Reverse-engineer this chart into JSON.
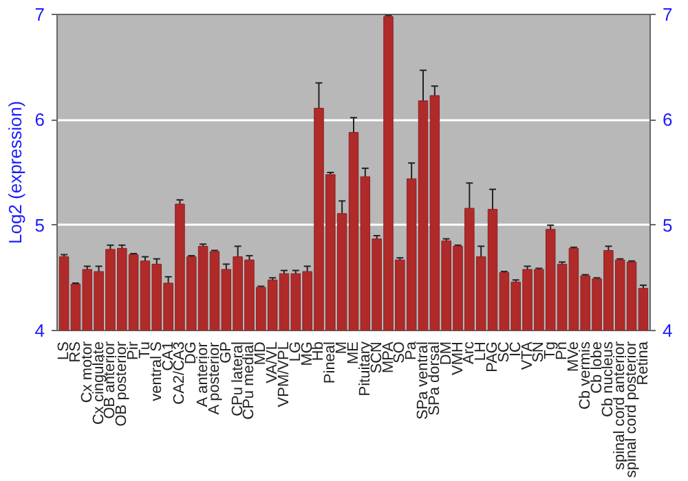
{
  "chart_data": {
    "type": "bar",
    "ylabel": "Log2 (expression)",
    "categories": [
      "LS",
      "RS",
      "Cx motor",
      "Cx cingulate",
      "OB anterior",
      "OB posterior",
      "Pir",
      "Tu",
      "ventral S",
      "CA1",
      "CA2/CA3",
      "DG",
      "A anterior",
      "A posterior",
      "GP",
      "CPu lateral",
      "CPu medial",
      "MD",
      "VA/VL",
      "VPM/VPL",
      "LG",
      "MG",
      "Hb",
      "Pineal",
      "M",
      "ME",
      "Pituitary",
      "SCN",
      "MPA",
      "SO",
      "Pa",
      "SPa ventral",
      "SPa dorsal",
      "DM",
      "VMH",
      "Arc",
      "LH",
      "PAG",
      "SC",
      "IC",
      "VTA",
      "SN",
      "Tg",
      "Pn",
      "MVe",
      "Cb vermis",
      "Cb lobe",
      "Cb nucleus",
      "spinal cord anterior",
      "spinal cord posterior",
      "Retina"
    ],
    "values": [
      4.7,
      4.44,
      4.58,
      4.56,
      4.77,
      4.78,
      4.72,
      4.66,
      4.63,
      4.45,
      5.2,
      4.7,
      4.8,
      4.75,
      4.58,
      4.7,
      4.67,
      4.41,
      4.48,
      4.54,
      4.54,
      4.56,
      6.11,
      5.48,
      5.11,
      5.88,
      5.46,
      4.87,
      6.98,
      4.67,
      5.44,
      6.18,
      6.23,
      4.85,
      4.8,
      5.16,
      4.7,
      5.15,
      4.55,
      4.46,
      4.58,
      4.58,
      4.96,
      4.63,
      4.78,
      4.52,
      4.49,
      4.76,
      4.67,
      4.65,
      4.4
    ],
    "errors": [
      0.02,
      0.01,
      0.03,
      0.05,
      0.04,
      0.03,
      0.01,
      0.04,
      0.05,
      0.06,
      0.04,
      0.01,
      0.02,
      0.01,
      0.05,
      0.1,
      0.04,
      0.01,
      0.02,
      0.03,
      0.03,
      0.05,
      0.24,
      0.02,
      0.12,
      0.14,
      0.08,
      0.03,
      0.01,
      0.02,
      0.15,
      0.29,
      0.09,
      0.02,
      0.01,
      0.24,
      0.1,
      0.19,
      0.01,
      0.02,
      0.03,
      0.01,
      0.04,
      0.02,
      0.01,
      0.01,
      0.01,
      0.04,
      0.01,
      0.01,
      0.03
    ],
    "color": "#b02a2a",
    "ylim": [
      4,
      7
    ],
    "yticks": [
      4,
      5,
      6,
      7
    ],
    "y2lim": [
      4,
      7
    ],
    "y2ticks": [
      4,
      5,
      6,
      7
    ],
    "grid": "y"
  }
}
